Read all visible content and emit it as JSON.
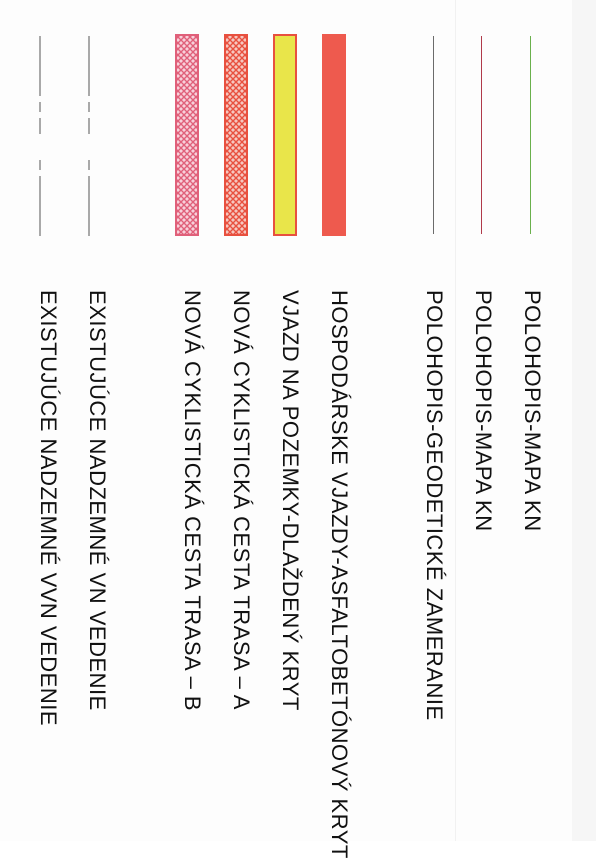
{
  "legend": {
    "items": [
      {
        "id": "polohopis-kn-green",
        "label": "POLOHOPIS-MAPA KN",
        "symbol": "line",
        "color": "#6ab04c"
      },
      {
        "id": "polohopis-kn-red",
        "label": "POLOHOPIS-MAPA KN",
        "symbol": "line",
        "color": "#b03a4a"
      },
      {
        "id": "polohopis-geodeticke",
        "label": "POLOHOPIS-GEODETICKÉ ZAMERANIE",
        "symbol": "line",
        "color": "#6b6b6b"
      },
      {
        "id": "hospodarske-vjazdy",
        "label": "HOSPODÁRSKE VJAZDY-ASFALTOBETÓNOVÝ KRYT",
        "symbol": "solid-fill",
        "color": "#ee5a4e"
      },
      {
        "id": "vjazd-pozemky",
        "label": "VJAZD NA POZEMKY-DLAŽDENÝ KRYT",
        "symbol": "outlined-fill",
        "color": "#e9e54a",
        "outline": "#e8503f"
      },
      {
        "id": "cyklisticka-a",
        "label": "NOVÁ CYKLISTICKÁ CESTA TRASA – A",
        "symbol": "crosshatch",
        "color": "#e8503f"
      },
      {
        "id": "cyklisticka-b",
        "label": "NOVÁ CYKLISTICKÁ CESTA TRASA – B",
        "symbol": "crosshatch",
        "color": "#e0607a"
      },
      {
        "id": "vn-vedenie",
        "label": "EXISTUJÚCE NADZEMNÉ VN VEDENIE",
        "symbol": "dash-line",
        "color": "#555555"
      },
      {
        "id": "vvn-vedenie",
        "label": "EXISTUJÚCE NADZEMNÉ VVN VEDENIE",
        "symbol": "dash-line",
        "color": "#555555"
      }
    ]
  }
}
